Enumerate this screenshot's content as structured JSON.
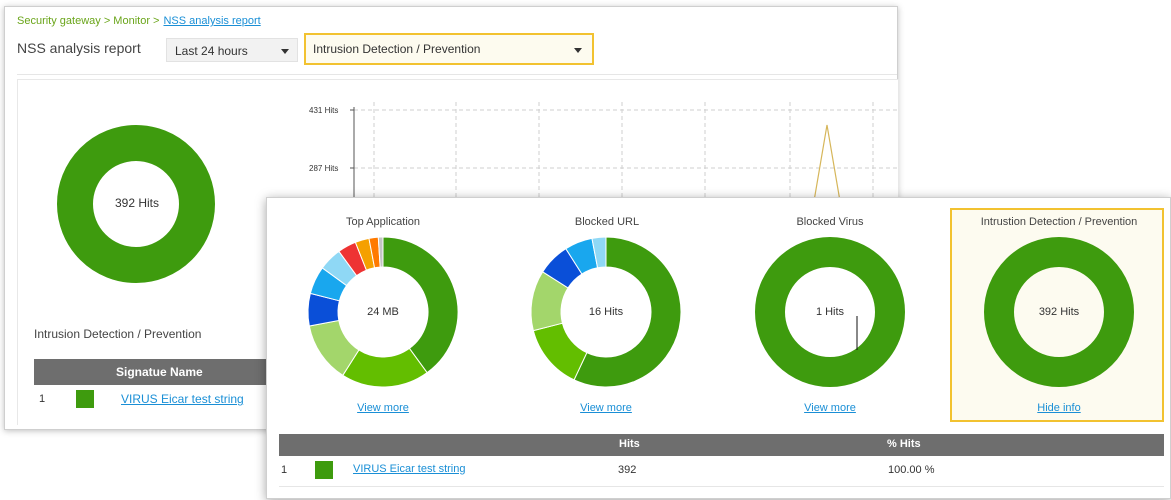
{
  "breadcrumb": {
    "path": "Security gateway > Monitor >",
    "current": "NSS analysis report"
  },
  "page_title": "NSS analysis report",
  "filters": {
    "time_range": "Last 24 hours",
    "category": "Intrusion Detection / Prevention"
  },
  "back_panel": {
    "donut_label": "392 Hits",
    "section_title": "Intrusion Detection / Prevention",
    "chart_ticks": [
      "431 Hits",
      "287 Hits"
    ],
    "table": {
      "header": "Signatue Name",
      "rows": [
        {
          "index": "1",
          "name": "VIRUS Eicar test string"
        }
      ]
    }
  },
  "cards": [
    {
      "title": "Top Application",
      "center": "24 MB",
      "link": "View more"
    },
    {
      "title": "Blocked URL",
      "center": "16 Hits",
      "link": "View more"
    },
    {
      "title": "Blocked Virus",
      "center": "1 Hits",
      "link": "View more"
    },
    {
      "title": "Intrustion Detection / Prevention",
      "center": "392 Hits",
      "link": "Hide info"
    }
  ],
  "front_table": {
    "headers": [
      "Hits",
      "% Hits"
    ],
    "rows": [
      {
        "index": "1",
        "name": "VIRUS Eicar test string",
        "hits": "392",
        "percent": "100.00 %"
      }
    ]
  },
  "chart_data": [
    {
      "type": "pie",
      "title": "Top Application",
      "center_label": "24 MB",
      "values": [
        40,
        19,
        13,
        7,
        6,
        5,
        4,
        3,
        2,
        1
      ],
      "colors": [
        "#3e9b0e",
        "#63be00",
        "#a3d66b",
        "#0a4fd8",
        "#19a7ee",
        "#8fd8f5",
        "#ee3333",
        "#f5a000",
        "#ff7a00",
        "#c4c4c4"
      ]
    },
    {
      "type": "pie",
      "title": "Blocked URL",
      "center_label": "16 Hits",
      "values": [
        57,
        14,
        13,
        7,
        6,
        3
      ],
      "colors": [
        "#3e9b0e",
        "#63be00",
        "#a3d66b",
        "#0a4fd8",
        "#19a7ee",
        "#8fd8f5"
      ]
    },
    {
      "type": "pie",
      "title": "Blocked Virus",
      "center_label": "1 Hits",
      "values": [
        100
      ],
      "colors": [
        "#3e9b0e"
      ]
    },
    {
      "type": "pie",
      "title": "Intrustion Detection / Prevention",
      "center_label": "392 Hits",
      "values": [
        100
      ],
      "colors": [
        "#3e9b0e"
      ]
    }
  ],
  "colors": {
    "accent_green": "#3e9b0e",
    "link_blue": "#1a8fd6",
    "highlight_yellow": "#f2c230",
    "table_header": "#6e6e6e"
  }
}
